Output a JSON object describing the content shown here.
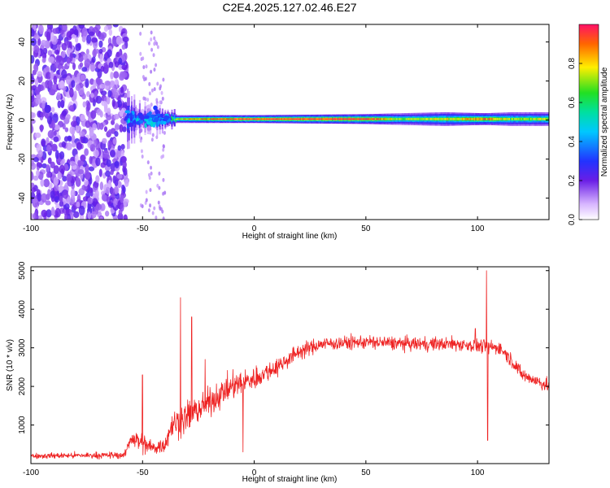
{
  "title": "C2E4.2025.127.02.46.E27",
  "colors": {
    "snr_line": "#ee2222",
    "spec_band_core": "#cc1111",
    "spec_scatter": "#6a1ee6"
  },
  "chart_data": [
    {
      "type": "heatmap",
      "xlabel": "Height of straight line (km)",
      "ylabel": "Frequency (Hz)",
      "xlim": [
        -100,
        132
      ],
      "ylim": [
        -51,
        49
      ],
      "x_ticks": [
        {
          "value": -100,
          "label": "-100"
        },
        {
          "value": -50,
          "label": "-50"
        },
        {
          "value": 0,
          "label": "0"
        },
        {
          "value": 50,
          "label": "50"
        },
        {
          "value": 100,
          "label": "100"
        }
      ],
      "y_ticks": [
        {
          "value": 40,
          "label": "40"
        },
        {
          "value": 20,
          "label": "20"
        },
        {
          "value": 0,
          "label": "0"
        },
        {
          "value": -20,
          "label": "-20"
        },
        {
          "value": -40,
          "label": "-40"
        }
      ],
      "colorbar": {
        "label": "Normalized spectral amplitude",
        "range": [
          0,
          1
        ],
        "colormap": "rainbow",
        "ticks": [
          {
            "value": 0.0,
            "label": "0.0"
          },
          {
            "value": 0.2,
            "label": "0.2"
          },
          {
            "value": 0.4,
            "label": "0.4"
          },
          {
            "value": 0.6,
            "label": "0.6"
          },
          {
            "value": 0.8,
            "label": "0.8"
          }
        ]
      },
      "features": {
        "noise_region_km": [
          -100,
          -57
        ],
        "noise_amplitude": 0.2,
        "sparse_noise_km": [
          -51,
          -40
        ],
        "band_center_hz": 0.5,
        "band_profile": [
          {
            "x": -57,
            "amp": 0.45,
            "half_width_hz": 6
          },
          {
            "x": -50,
            "amp": 0.35,
            "half_width_hz": 4
          },
          {
            "x": -42,
            "amp": 0.4,
            "half_width_hz": 3
          },
          {
            "x": -35,
            "amp": 0.75,
            "half_width_hz": 2
          },
          {
            "x": -25,
            "amp": 0.9,
            "half_width_hz": 2
          },
          {
            "x": 0,
            "amp": 1.0,
            "half_width_hz": 2
          },
          {
            "x": 50,
            "amp": 1.0,
            "half_width_hz": 2.5
          },
          {
            "x": 65,
            "amp": 0.7,
            "half_width_hz": 3
          },
          {
            "x": 85,
            "amp": 0.75,
            "half_width_hz": 3.5
          },
          {
            "x": 103,
            "amp": 0.9,
            "half_width_hz": 3
          },
          {
            "x": 115,
            "amp": 0.7,
            "half_width_hz": 3.5
          },
          {
            "x": 132,
            "amp": 0.75,
            "half_width_hz": 3.5
          }
        ]
      }
    },
    {
      "type": "line",
      "xlabel": "Height of straight line (km)",
      "ylabel": "SNR (10 * v/v)",
      "xlim": [
        -100,
        132
      ],
      "ylim": [
        0,
        5100
      ],
      "x_ticks": [
        {
          "value": -100,
          "label": "-100"
        },
        {
          "value": -50,
          "label": "-50"
        },
        {
          "value": 0,
          "label": "0"
        },
        {
          "value": 50,
          "label": "50"
        },
        {
          "value": 100,
          "label": "100"
        }
      ],
      "y_ticks": [
        {
          "value": 1000,
          "label": "1000"
        },
        {
          "value": 2000,
          "label": "2000"
        },
        {
          "value": 3000,
          "label": "3000"
        },
        {
          "value": 4000,
          "label": "4000"
        },
        {
          "value": 5000,
          "label": "5000"
        }
      ],
      "series": [
        {
          "color": "#ee2222",
          "envelope": [
            {
              "x": -100,
              "y": 200,
              "noise": 120
            },
            {
              "x": -58,
              "y": 220,
              "noise": 150
            },
            {
              "x": -55,
              "y": 700,
              "noise": 400
            },
            {
              "x": -50,
              "y": 500,
              "noise": 500
            },
            {
              "x": -45,
              "y": 400,
              "noise": 300
            },
            {
              "x": -40,
              "y": 500,
              "noise": 400
            },
            {
              "x": -37,
              "y": 1000,
              "noise": 600
            },
            {
              "x": -30,
              "y": 1200,
              "noise": 700
            },
            {
              "x": -20,
              "y": 1600,
              "noise": 600
            },
            {
              "x": -10,
              "y": 2000,
              "noise": 600
            },
            {
              "x": 0,
              "y": 2200,
              "noise": 500
            },
            {
              "x": 10,
              "y": 2500,
              "noise": 400
            },
            {
              "x": 20,
              "y": 2900,
              "noise": 350
            },
            {
              "x": 30,
              "y": 3100,
              "noise": 300
            },
            {
              "x": 50,
              "y": 3150,
              "noise": 300
            },
            {
              "x": 70,
              "y": 3100,
              "noise": 300
            },
            {
              "x": 90,
              "y": 3100,
              "noise": 300
            },
            {
              "x": 110,
              "y": 3000,
              "noise": 300
            },
            {
              "x": 115,
              "y": 2700,
              "noise": 300
            },
            {
              "x": 120,
              "y": 2300,
              "noise": 300
            },
            {
              "x": 132,
              "y": 2000,
              "noise": 300
            }
          ],
          "spikes": [
            {
              "x": -50,
              "y": 2300
            },
            {
              "x": -33,
              "y": 4300
            },
            {
              "x": -28,
              "y": 3800
            },
            {
              "x": -22,
              "y": 2700
            },
            {
              "x": -5,
              "y": 300
            },
            {
              "x": 99,
              "y": 3500
            },
            {
              "x": 104,
              "y": 5000
            },
            {
              "x": 104.5,
              "y": 600
            }
          ]
        }
      ]
    }
  ]
}
